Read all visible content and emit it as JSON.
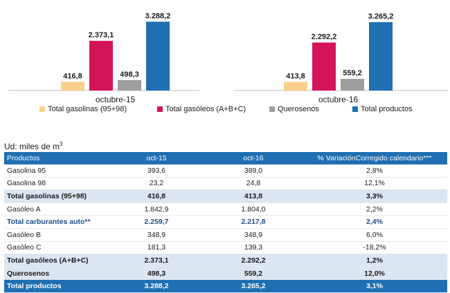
{
  "chart_data": {
    "type": "bar",
    "categories": [
      "octubre-15",
      "octubre-16"
    ],
    "series": [
      {
        "name": "Total gasolinas (95+98)",
        "values": [
          416.8,
          413.8
        ],
        "labels": [
          "416,8",
          "413,8"
        ],
        "color": "#f9d08b"
      },
      {
        "name": "Total gasóleos (A+B+C)",
        "values": [
          2373.1,
          2292.2
        ],
        "labels": [
          "2.373,1",
          "2.292,2"
        ],
        "color": "#d4145a"
      },
      {
        "name": "Querosenos",
        "values": [
          498.3,
          559.2
        ],
        "labels": [
          "498,3",
          "559,2"
        ],
        "color": "#9e9e9e"
      },
      {
        "name": "Total productos",
        "values": [
          3288.2,
          3265.2
        ],
        "labels": [
          "3.288,2",
          "3.265,2"
        ],
        "color": "#1f6fb2"
      }
    ],
    "ylim": [
      0,
      3300
    ],
    "grid": false,
    "legend": "bottom"
  },
  "unit": {
    "prefix": "Ud: miles de m",
    "sup": "3"
  },
  "table": {
    "headers": [
      "Productos",
      "oct-15",
      "oct-16",
      "% VariaciónCorregido calendario***"
    ],
    "rows": [
      {
        "cells": [
          "Gasolina 95",
          "393,6",
          "389,0",
          "2,8%"
        ],
        "style": "normal"
      },
      {
        "cells": [
          "Gasolina 98",
          "23,2",
          "24,8",
          "12,1%"
        ],
        "style": "normal"
      },
      {
        "cells": [
          "Total gasolinas (95+98)",
          "416,8",
          "413,8",
          "3,3%"
        ],
        "style": "total"
      },
      {
        "cells": [
          "Gasóleo A",
          "1.842,9",
          "1.804,0",
          "2,2%"
        ],
        "style": "normal"
      },
      {
        "cells": [
          "Total carburantes auto**",
          "2.259,7",
          "2.217,8",
          "2,4%"
        ],
        "style": "sub"
      },
      {
        "cells": [
          "Gasóleo B",
          "348,9",
          "348,9",
          "6,0%"
        ],
        "style": "normal"
      },
      {
        "cells": [
          "Gasóleo C",
          "181,3",
          "139,3",
          "-18,2%"
        ],
        "style": "normal"
      },
      {
        "cells": [
          "Total gasóleos (A+B+C)",
          "2.373,1",
          "2.292,2",
          "1,2%"
        ],
        "style": "total"
      },
      {
        "cells": [
          "Querosenos",
          "498,3",
          "559,2",
          "12,0%"
        ],
        "style": "total"
      },
      {
        "cells": [
          "Total productos",
          "3.288,2",
          "3.265,2",
          "3,1%"
        ],
        "style": "grand"
      }
    ]
  }
}
